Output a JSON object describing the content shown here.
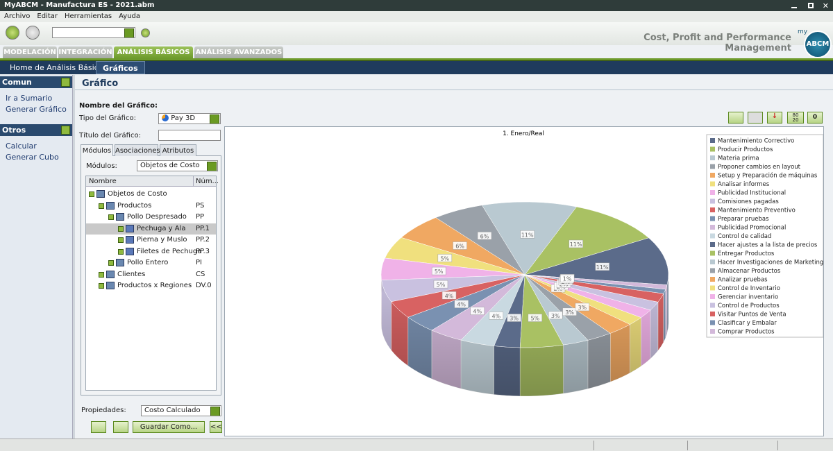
{
  "window": {
    "title": "MyABCM - Manufactura ES - 2021.abm"
  },
  "menu": [
    "Archivo",
    "Editar",
    "Herramientas",
    "Ayuda"
  ],
  "toolbar": {
    "tagline": "Cost, Profit and Performance Management",
    "logo_prefix": "my",
    "logo": "ABCM"
  },
  "tabs": [
    "MODELACIÓN",
    "INTEGRACIÓN",
    "ANÁLISIS BÁSICOS",
    "ANÁLISIS AVANZADOS"
  ],
  "subtabs": [
    "Home de Análisis Básico",
    "Gráficos"
  ],
  "sidebar": {
    "sections": [
      {
        "title": "Comun",
        "items": [
          "Ir a Sumario",
          "Generar Gráfico"
        ]
      },
      {
        "title": "Otros",
        "items": [
          "Calcular",
          "Generar Cubo"
        ]
      }
    ]
  },
  "panel": {
    "title": "Gráfico",
    "name_label": "Nombre del Gráfico:",
    "type_label": "Tipo del Gráfico:",
    "type_value": "Pay 3D",
    "chart_title_label": "Título del Gráfico:",
    "module_tabs": [
      "Módulos",
      "Asociaciones",
      "Atributos"
    ],
    "modules_label": "Módulos:",
    "modules_value": "Objetos de Costo",
    "tree_columns": [
      "Nombre",
      "Núm..."
    ],
    "tree": [
      {
        "name": "Objetos de Costo",
        "level": 0
      },
      {
        "name": "Productos",
        "code": "PS",
        "level": 1
      },
      {
        "name": "Pollo Despresado",
        "code": "PP",
        "level": 2
      },
      {
        "name": "Pechuga y Ala",
        "code": "PP.1",
        "level": 3,
        "selected": true
      },
      {
        "name": "Pierna y Muslo",
        "code": "PP.2",
        "level": 3
      },
      {
        "name": "Filetes de Pechuga",
        "code": "PP.3",
        "level": 3
      },
      {
        "name": "Pollo Entero",
        "code": "PI",
        "level": 2
      },
      {
        "name": "Clientes",
        "code": "CS",
        "level": 1
      },
      {
        "name": "Productos x Regiones",
        "code": "DV.0",
        "level": 1
      }
    ],
    "properties_label": "Propiedades:",
    "properties_value": "Costo Calculado",
    "save_button": "Guardar Como...",
    "collapse_button": "<<",
    "chart_tools": [
      "80 20",
      "0"
    ]
  },
  "chart_data": {
    "type": "pie",
    "title": "1. Enero/Real",
    "categories": [
      "Mantenimiento Correctivo",
      "Producir Productos",
      "Materia prima",
      "Proponer cambios en layout",
      "Setup y Preparación de máquinas",
      "Analisar informes",
      "Publicidad Institucional",
      "Comisiones pagadas",
      "Mantenimiento Preventivo",
      "Preparar pruebas",
      "Publicidad Promocional",
      "Control de calidad",
      "Hacer ajustes a la lista de precios",
      "Entregar Productos",
      "Hacer Investigaciones de Marketing",
      "Almacenar Productos",
      "Analizar pruebas",
      "Control de Inventario",
      "Gerenciar inventario",
      "Control de Productos",
      "Visitar Puntos de Venta",
      "Clasificar y Embalar",
      "Comprar Productos"
    ],
    "values": [
      11,
      11,
      11,
      6,
      6,
      5,
      5,
      5,
      4,
      4,
      4,
      4,
      3,
      5,
      3,
      3,
      3,
      2,
      2,
      2,
      2,
      1,
      1
    ],
    "value_labels": [
      "11%",
      "11%",
      "11%",
      "6%",
      "6%",
      "5%",
      "5%",
      "5%",
      "4%",
      "4%",
      "4%",
      "4%",
      "3%",
      "5%",
      "3%",
      "3%",
      "3%",
      "2%",
      "2%",
      "2%",
      "2%",
      "1%",
      "1%"
    ],
    "colors": [
      "#5b6b8a",
      "#a9c163",
      "#b9c9d1",
      "#9aa1a9",
      "#f0a862",
      "#f0e07e",
      "#f0b2e8",
      "#c9c1e0",
      "#d86262",
      "#7a91b1",
      "#d3b9da",
      "#c9d9e1",
      "#5b6b8a",
      "#a9c163",
      "#b9c9d1",
      "#9aa1a9",
      "#f0a862",
      "#f0e07e",
      "#f0b2e8",
      "#c9c1e0",
      "#d86262",
      "#7a91b1",
      "#d3b9da"
    ],
    "legend": "right"
  }
}
